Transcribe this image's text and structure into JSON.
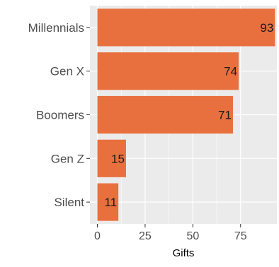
{
  "chart_data": {
    "type": "bar",
    "orientation": "horizontal",
    "categories": [
      "Millennials",
      "Gen X",
      "Boomers",
      "Gen Z",
      "Silent"
    ],
    "values": [
      93,
      74,
      71,
      15,
      11
    ],
    "data_labels": [
      "93",
      "74",
      "71",
      "15",
      "11"
    ],
    "xlabel": "Gifts",
    "ylabel": "",
    "xlim": [
      0,
      94
    ],
    "x_ticks": [
      0,
      25,
      50,
      75
    ],
    "x_tick_labels": [
      "0",
      "25",
      "50",
      "75"
    ],
    "grid": true,
    "legend": "none",
    "colors": {
      "bar": "#E8703E",
      "panel_background": "#EBEBEB",
      "grid_major": "#FFFFFF",
      "axis_text": "#4D4D4D",
      "title_text": "#000000"
    }
  }
}
